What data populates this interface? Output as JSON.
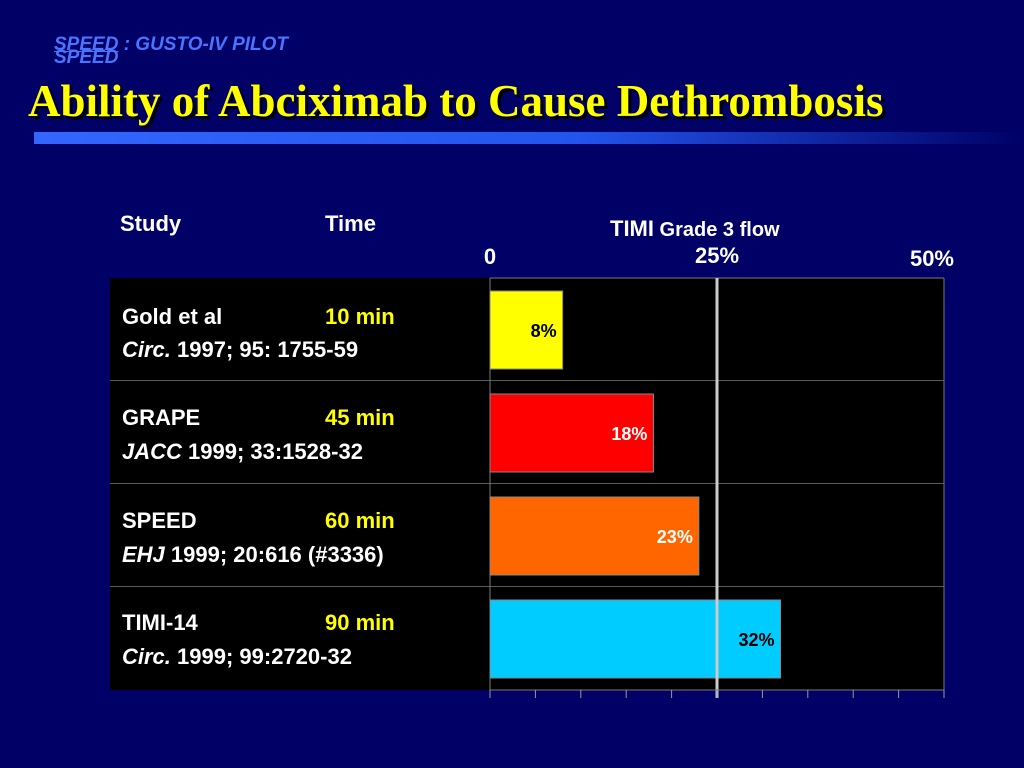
{
  "kicker": {
    "prefix": "SPEED",
    "rest": " : GUSTO-IV PILOT",
    "ghost": "SPEED"
  },
  "title": "Ability of Abciximab to Cause Dethrombosis",
  "table": {
    "col_study": "Study",
    "col_time": "Time",
    "rows": [
      {
        "study": "Gold et al",
        "time": "10 min",
        "journal": "Circ.",
        "citation": " 1997; 95: 1755-59"
      },
      {
        "study": "GRAPE",
        "time": "45 min",
        "journal": "JACC",
        "citation": " 1999; 33:1528-32"
      },
      {
        "study": "SPEED",
        "time": "60 min",
        "journal": "EHJ",
        "citation": " 1999; 20:616 (#3336)"
      },
      {
        "study": "TIMI-14",
        "time": "90 min",
        "journal": "Circ.",
        "citation": " 1999; 99:2720-32"
      }
    ]
  },
  "chart_data": {
    "type": "bar",
    "orientation": "horizontal",
    "title_main": "TIMI",
    "title_sub": " Grade 3 flow",
    "categories": [
      "Gold et al",
      "GRAPE",
      "SPEED",
      "TIMI-14"
    ],
    "values": [
      8,
      18,
      23,
      32
    ],
    "value_labels": [
      "8%",
      "18%",
      "23%",
      "32%"
    ],
    "colors": [
      "#ffff00",
      "#ff0000",
      "#ff6600",
      "#00ccff"
    ],
    "label_colors": [
      "#000000",
      "#ffffff",
      "#ffffff",
      "#000000"
    ],
    "xlim": [
      0,
      50
    ],
    "tick_labels": [
      {
        "value": 0,
        "label": "0"
      },
      {
        "value": 25,
        "label": "25%"
      },
      {
        "value": 50,
        "label": "50%"
      }
    ],
    "minor_tick_step": 5,
    "reference_line": 25
  }
}
